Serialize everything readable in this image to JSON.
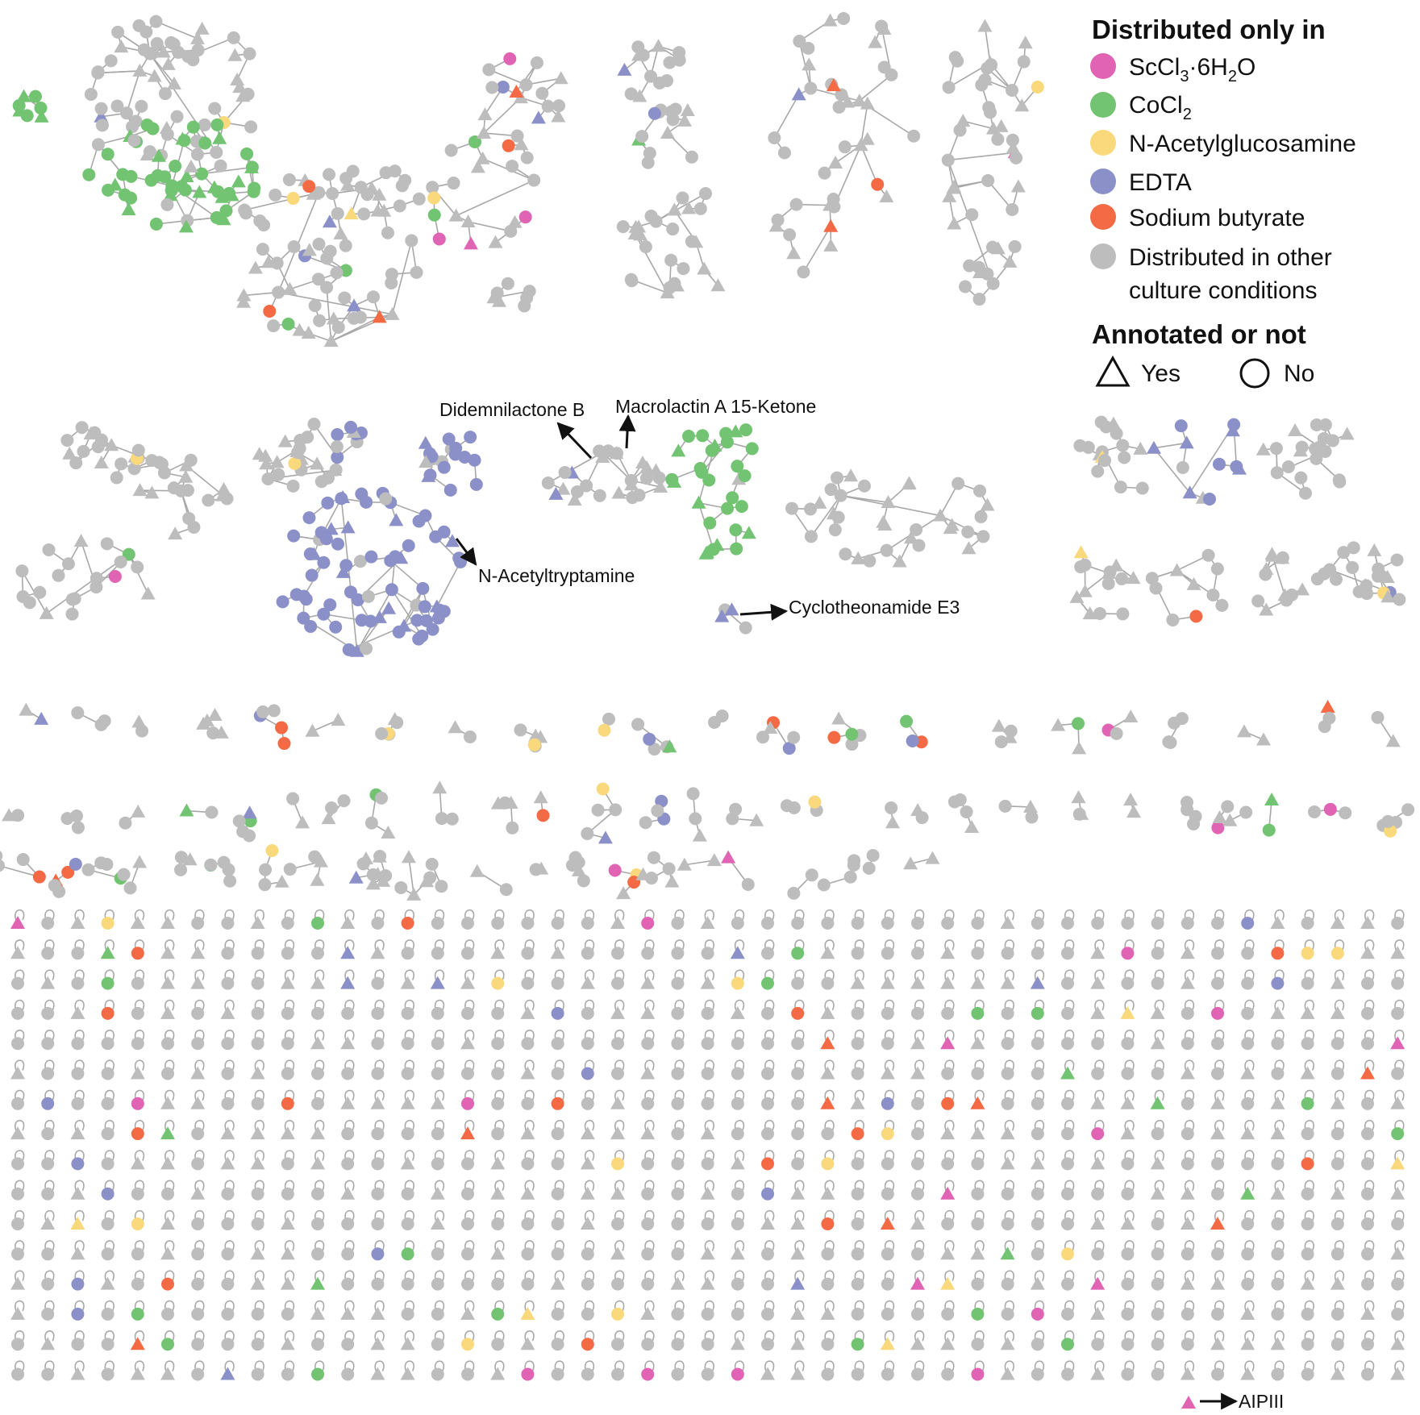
{
  "legend": {
    "title_condition": "Distributed only in",
    "conditions": [
      {
        "key": "sc",
        "main": "ScCl",
        "sub1": "3",
        "mid": "·6H",
        "sub2": "2",
        "tail": "O",
        "color": "#e064b3"
      },
      {
        "key": "co",
        "main": "CoCl",
        "sub1": "2",
        "mid": "",
        "sub2": "",
        "tail": "",
        "color": "#72c472"
      },
      {
        "key": "nag",
        "main": "N-Acetylglucosamine",
        "sub1": "",
        "mid": "",
        "sub2": "",
        "tail": "",
        "color": "#fad97c"
      },
      {
        "key": "edta",
        "main": "EDTA",
        "sub1": "",
        "mid": "",
        "sub2": "",
        "tail": "",
        "color": "#8b91c8"
      },
      {
        "key": "sb",
        "main": "Sodium butyrate",
        "sub1": "",
        "mid": "",
        "sub2": "",
        "tail": "",
        "color": "#f46a45"
      }
    ],
    "other_line1": "Distributed in other",
    "other_line2": "culture conditions",
    "other_color": "#bdbdbd",
    "title_annotated": "Annotated or not",
    "yes_label": "Yes",
    "no_label": "No"
  },
  "annotations": {
    "didemnilactone": "Didemnilactone B",
    "macrolactin": "Macrolactin A 15-Ketone",
    "acetyltryptamine": "N-Acetyltryptamine",
    "cyclotheonamide": "Cyclotheonamide E3",
    "aipiii": "AIPIII"
  },
  "colors": {
    "edge": "#a8a8a8",
    "arrow": "#111111"
  }
}
